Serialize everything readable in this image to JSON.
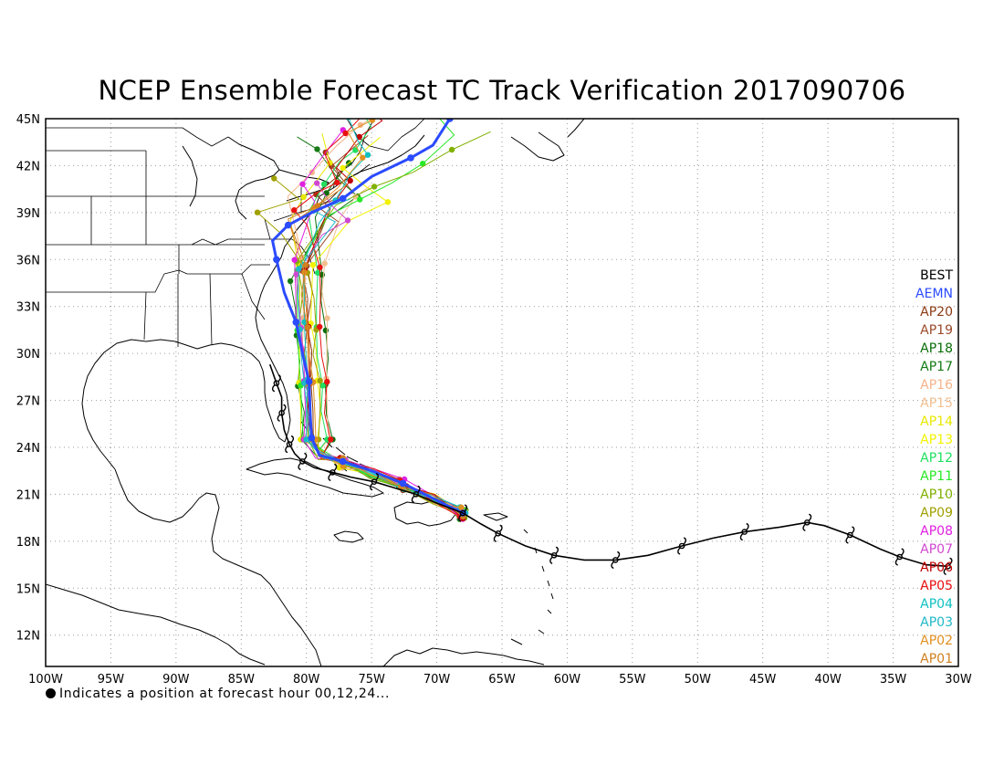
{
  "title": "NCEP Ensemble Forecast TC Track Verification 2017090706",
  "footnote": "Indicates a position at forecast hour 00,12,24...",
  "lat_labels": [
    "45N",
    "42N",
    "39N",
    "36N",
    "33N",
    "30N",
    "27N",
    "24N",
    "21N",
    "18N",
    "15N",
    "12N"
  ],
  "lon_labels": [
    "100W",
    "95W",
    "90W",
    "85W",
    "80W",
    "75W",
    "70W",
    "65W",
    "60W",
    "55W",
    "50W",
    "45W",
    "40W",
    "35W",
    "30W"
  ],
  "legend": [
    {
      "label": "BEST",
      "color": "#000000"
    },
    {
      "label": "AEMN",
      "color": "#2b4bff"
    },
    {
      "label": "AP20",
      "color": "#8b3a12"
    },
    {
      "label": "AP19",
      "color": "#9b4a2a"
    },
    {
      "label": "AP18",
      "color": "#0a6e0a"
    },
    {
      "label": "AP17",
      "color": "#167a16"
    },
    {
      "label": "AP16",
      "color": "#f4b48a"
    },
    {
      "label": "AP15",
      "color": "#f2c090"
    },
    {
      "label": "AP14",
      "color": "#e8e800"
    },
    {
      "label": "AP13",
      "color": "#f2f200"
    },
    {
      "label": "AP12",
      "color": "#20e060"
    },
    {
      "label": "AP11",
      "color": "#28e828"
    },
    {
      "label": "AP10",
      "color": "#80b000"
    },
    {
      "label": "AP09",
      "color": "#a0a000"
    },
    {
      "label": "AP08",
      "color": "#e020e0"
    },
    {
      "label": "AP07",
      "color": "#d048d0"
    },
    {
      "label": "AP06",
      "color": "#c00000"
    },
    {
      "label": "AP05",
      "color": "#e81010"
    },
    {
      "label": "AP04",
      "color": "#10c0c0"
    },
    {
      "label": "AP03",
      "color": "#20b8c8"
    },
    {
      "label": "AP02",
      "color": "#e09020"
    },
    {
      "label": "AP01",
      "color": "#d08020"
    }
  ],
  "map_extent": {
    "lon_west": -100,
    "lon_east": -30,
    "lat_south": 10,
    "lat_north": 45
  },
  "best_track": [
    {
      "lon": -30.8,
      "lat": 16.4
    },
    {
      "lon": -32.5,
      "lat": 16.5
    },
    {
      "lon": -34.5,
      "lat": 17.0
    },
    {
      "lon": -36.0,
      "lat": 17.5
    },
    {
      "lon": -38.3,
      "lat": 18.4
    },
    {
      "lon": -40.3,
      "lat": 19.0
    },
    {
      "lon": -41.6,
      "lat": 19.2
    },
    {
      "lon": -43.7,
      "lat": 18.9
    },
    {
      "lon": -46.4,
      "lat": 18.6
    },
    {
      "lon": -48.8,
      "lat": 18.2
    },
    {
      "lon": -51.2,
      "lat": 17.7
    },
    {
      "lon": -53.8,
      "lat": 17.1
    },
    {
      "lon": -56.3,
      "lat": 16.8
    },
    {
      "lon": -58.7,
      "lat": 16.8
    },
    {
      "lon": -61.0,
      "lat": 17.1
    },
    {
      "lon": -63.2,
      "lat": 17.7
    },
    {
      "lon": -65.3,
      "lat": 18.5
    },
    {
      "lon": -66.6,
      "lat": 19.1
    },
    {
      "lon": -68.0,
      "lat": 19.8
    },
    {
      "lon": -70.2,
      "lat": 20.5
    },
    {
      "lon": -71.6,
      "lat": 21.0
    },
    {
      "lon": -73.2,
      "lat": 21.4
    },
    {
      "lon": -74.8,
      "lat": 21.8
    },
    {
      "lon": -76.6,
      "lat": 22.1
    },
    {
      "lon": -78.0,
      "lat": 22.4
    },
    {
      "lon": -79.4,
      "lat": 22.7
    },
    {
      "lon": -80.3,
      "lat": 23.1
    },
    {
      "lon": -80.9,
      "lat": 23.6
    },
    {
      "lon": -81.3,
      "lat": 24.2
    },
    {
      "lon": -81.7,
      "lat": 25.1
    },
    {
      "lon": -81.9,
      "lat": 26.2
    },
    {
      "lon": -81.9,
      "lat": 27.2
    },
    {
      "lon": -82.3,
      "lat": 28.1
    },
    {
      "lon": -82.8,
      "lat": 29.3
    }
  ],
  "aemn_track": [
    {
      "lon": -68.0,
      "lat": 19.8
    },
    {
      "lon": -70.2,
      "lat": 20.7
    },
    {
      "lon": -72.6,
      "lat": 21.7
    },
    {
      "lon": -75.0,
      "lat": 22.5
    },
    {
      "lon": -77.2,
      "lat": 23.1
    },
    {
      "lon": -79.0,
      "lat": 23.5
    },
    {
      "lon": -79.6,
      "lat": 24.6
    },
    {
      "lon": -79.7,
      "lat": 26.0
    },
    {
      "lon": -79.8,
      "lat": 28.2
    },
    {
      "lon": -80.3,
      "lat": 30.0
    },
    {
      "lon": -80.8,
      "lat": 32.0
    },
    {
      "lon": -81.7,
      "lat": 33.9
    },
    {
      "lon": -82.3,
      "lat": 36.0
    },
    {
      "lon": -82.6,
      "lat": 37.2
    },
    {
      "lon": -81.4,
      "lat": 38.2
    },
    {
      "lon": -79.6,
      "lat": 39.0
    },
    {
      "lon": -77.2,
      "lat": 39.9
    },
    {
      "lon": -75.0,
      "lat": 41.3
    },
    {
      "lon": -72.0,
      "lat": 42.5
    },
    {
      "lon": -70.3,
      "lat": 43.3
    },
    {
      "lon": -69.0,
      "lat": 45.0
    }
  ]
}
